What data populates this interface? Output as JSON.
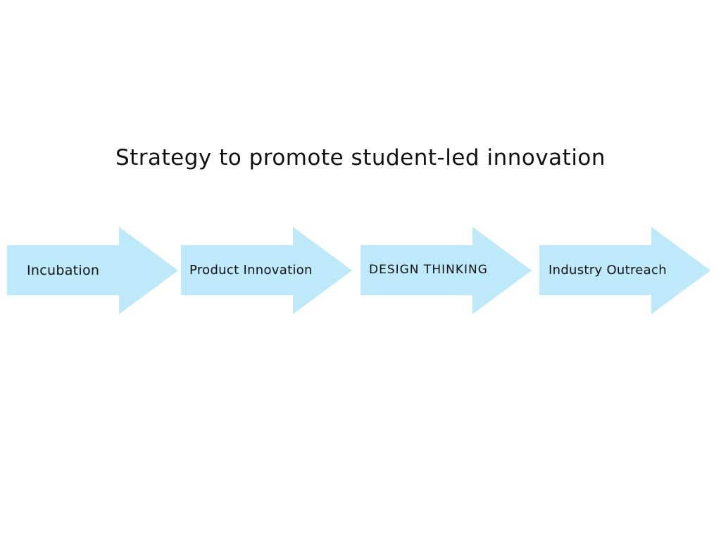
{
  "diagram": {
    "title": "Strategy to promote student-led innovation",
    "arrow_color": "#bde9fb",
    "steps": [
      {
        "label": "Incubation"
      },
      {
        "label": "Product Innovation"
      },
      {
        "label": "DESIGN THINKING"
      },
      {
        "label": "Industry Outreach"
      }
    ]
  }
}
